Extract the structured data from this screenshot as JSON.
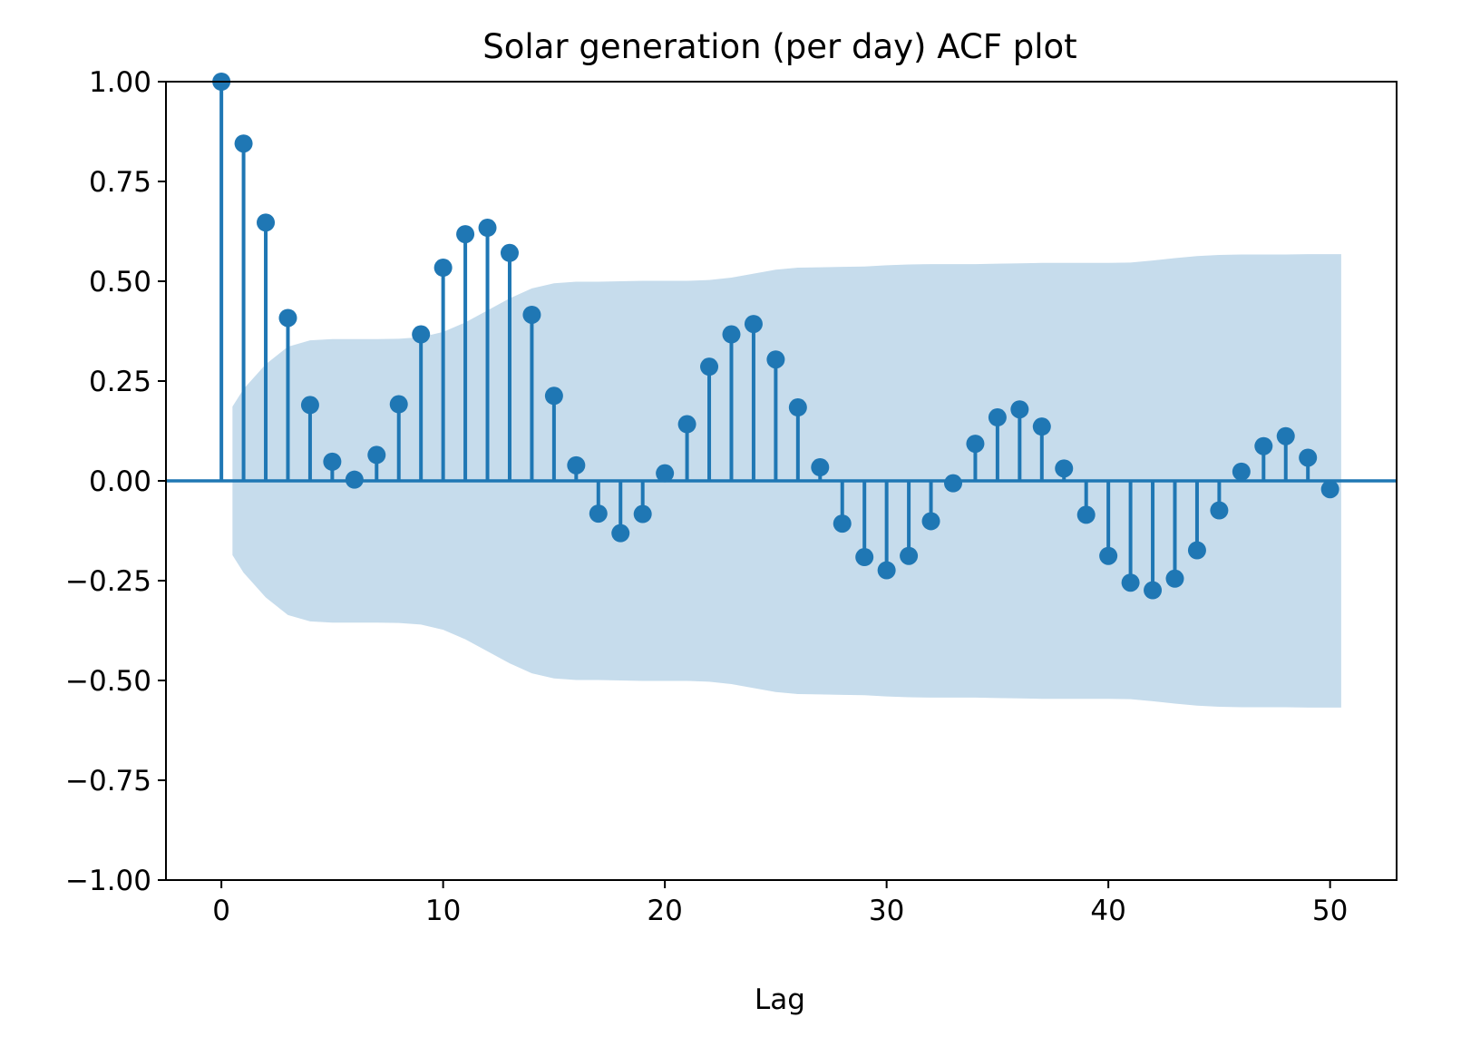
{
  "chart_data": {
    "type": "stem",
    "title": "Solar generation (per day) ACF plot",
    "xlabel": "Lag",
    "ylabel": "",
    "xlim": [
      -2.5,
      53
    ],
    "ylim": [
      -1.0,
      1.0
    ],
    "x_ticks": [
      0,
      10,
      20,
      30,
      40,
      50
    ],
    "x_tick_labels": [
      "0",
      "10",
      "20",
      "30",
      "40",
      "50"
    ],
    "y_ticks": [
      1.0,
      0.75,
      0.5,
      0.25,
      0.0,
      -0.25,
      -0.5,
      -0.75,
      -1.0
    ],
    "y_tick_labels": [
      "1.00",
      "0.75",
      "0.50",
      "0.25",
      "0.00",
      "−0.25",
      "−0.50",
      "−0.75",
      "−1.00"
    ],
    "grid": false,
    "baseline": 0,
    "lags": [
      0,
      1,
      2,
      3,
      4,
      5,
      6,
      7,
      8,
      9,
      10,
      11,
      12,
      13,
      14,
      15,
      16,
      17,
      18,
      19,
      20,
      21,
      22,
      23,
      24,
      25,
      26,
      27,
      28,
      29,
      30,
      31,
      32,
      33,
      34,
      35,
      36,
      37,
      38,
      39,
      40,
      41,
      42,
      43,
      44,
      45,
      46,
      47,
      48,
      49,
      50
    ],
    "values": [
      1.0,
      0.845,
      0.647,
      0.408,
      0.19,
      0.048,
      0.003,
      0.065,
      0.192,
      0.367,
      0.534,
      0.618,
      0.634,
      0.571,
      0.416,
      0.213,
      0.039,
      -0.082,
      -0.131,
      -0.083,
      0.019,
      0.142,
      0.286,
      0.367,
      0.393,
      0.304,
      0.184,
      0.034,
      -0.107,
      -0.191,
      -0.224,
      -0.188,
      -0.101,
      -0.006,
      0.093,
      0.159,
      0.179,
      0.136,
      0.031,
      -0.085,
      -0.188,
      -0.255,
      -0.274,
      -0.245,
      -0.174,
      -0.074,
      0.023,
      0.087,
      0.112,
      0.058,
      -0.021
    ],
    "confidence_band": {
      "lags": [
        0.5,
        1,
        2,
        3,
        4,
        5,
        6,
        7,
        8,
        9,
        10,
        11,
        12,
        13,
        14,
        15,
        16,
        17,
        18,
        19,
        20,
        21,
        22,
        23,
        24,
        25,
        26,
        27,
        28,
        29,
        30,
        31,
        32,
        33,
        34,
        35,
        36,
        37,
        38,
        39,
        40,
        41,
        42,
        43,
        44,
        45,
        46,
        47,
        48,
        49,
        50,
        50.5
      ],
      "upper": [
        0.186,
        0.23,
        0.292,
        0.336,
        0.352,
        0.355,
        0.355,
        0.355,
        0.356,
        0.36,
        0.373,
        0.397,
        0.427,
        0.457,
        0.482,
        0.495,
        0.499,
        0.499,
        0.5,
        0.501,
        0.501,
        0.501,
        0.503,
        0.509,
        0.519,
        0.529,
        0.534,
        0.535,
        0.536,
        0.537,
        0.54,
        0.542,
        0.543,
        0.543,
        0.543,
        0.544,
        0.545,
        0.546,
        0.546,
        0.546,
        0.546,
        0.547,
        0.552,
        0.558,
        0.563,
        0.566,
        0.567,
        0.567,
        0.567,
        0.568,
        0.568,
        0.568
      ],
      "lower": [
        -0.186,
        -0.23,
        -0.292,
        -0.336,
        -0.352,
        -0.355,
        -0.355,
        -0.355,
        -0.356,
        -0.36,
        -0.373,
        -0.397,
        -0.427,
        -0.457,
        -0.482,
        -0.495,
        -0.499,
        -0.499,
        -0.5,
        -0.501,
        -0.501,
        -0.501,
        -0.503,
        -0.509,
        -0.519,
        -0.529,
        -0.534,
        -0.535,
        -0.536,
        -0.537,
        -0.54,
        -0.542,
        -0.543,
        -0.543,
        -0.543,
        -0.544,
        -0.545,
        -0.546,
        -0.546,
        -0.546,
        -0.546,
        -0.547,
        -0.552,
        -0.558,
        -0.563,
        -0.566,
        -0.567,
        -0.567,
        -0.567,
        -0.568,
        -0.568,
        -0.568
      ]
    },
    "colors": {
      "stem": "#1f77b4",
      "marker": "#1f77b4",
      "baseline": "#1f77b4",
      "band": "#c6dcec",
      "axes": "#000000",
      "background": "#ffffff"
    }
  }
}
